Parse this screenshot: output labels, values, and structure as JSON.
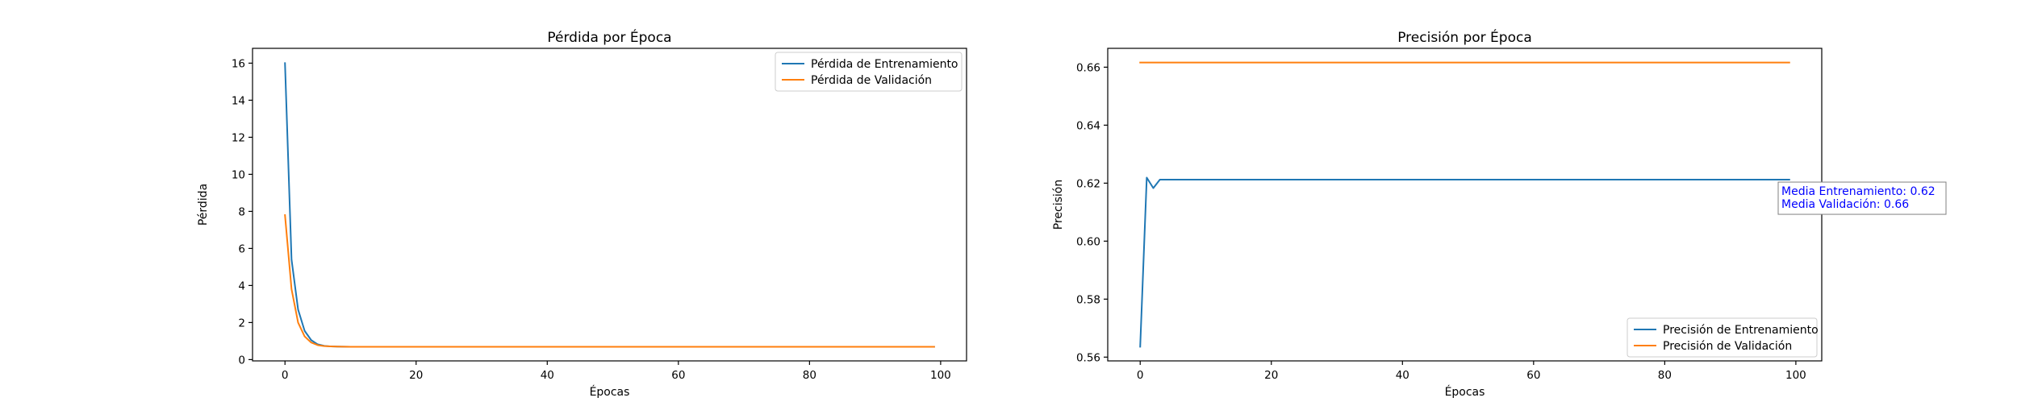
{
  "chart_data": [
    {
      "type": "line",
      "title": "Pérdida por Época",
      "xlabel": "Épocas",
      "ylabel": "Pérdida",
      "xlim": [
        -4.95,
        103.95
      ],
      "ylim": [
        -0.07,
        16.8
      ],
      "xticks": [
        0,
        20,
        40,
        60,
        80,
        100
      ],
      "xtick_labels": [
        "0",
        "20",
        "40",
        "60",
        "80",
        "100"
      ],
      "yticks": [
        0,
        2,
        4,
        6,
        8,
        10,
        12,
        14,
        16
      ],
      "ytick_labels": [
        "0",
        "2",
        "4",
        "6",
        "8",
        "10",
        "12",
        "14",
        "16"
      ],
      "grid": false,
      "legend": "upper right",
      "series": [
        {
          "name": "Pérdida de Entrenamiento",
          "color": "#1f77b4",
          "x": [
            0,
            1,
            2,
            3,
            4,
            5,
            6,
            7,
            8,
            10,
            15,
            20,
            30,
            40,
            50,
            60,
            70,
            80,
            90,
            99
          ],
          "y": [
            16.0,
            5.4,
            2.7,
            1.55,
            1.05,
            0.82,
            0.74,
            0.71,
            0.7,
            0.69,
            0.69,
            0.69,
            0.69,
            0.69,
            0.69,
            0.69,
            0.69,
            0.69,
            0.69,
            0.69
          ]
        },
        {
          "name": "Pérdida de Validación",
          "color": "#ff7f0e",
          "x": [
            0,
            1,
            2,
            3,
            4,
            5,
            6,
            7,
            8,
            10,
            15,
            20,
            30,
            40,
            50,
            60,
            70,
            80,
            90,
            99
          ],
          "y": [
            7.8,
            3.8,
            2.0,
            1.25,
            0.92,
            0.78,
            0.73,
            0.71,
            0.7,
            0.69,
            0.69,
            0.69,
            0.69,
            0.69,
            0.69,
            0.69,
            0.69,
            0.69,
            0.69,
            0.69
          ]
        }
      ]
    },
    {
      "type": "line",
      "title": "Precisión por Época",
      "xlabel": "Épocas",
      "ylabel": "Precisión",
      "xlim": [
        -4.95,
        103.95
      ],
      "ylim": [
        0.5587,
        0.6665
      ],
      "xticks": [
        0,
        20,
        40,
        60,
        80,
        100
      ],
      "xtick_labels": [
        "0",
        "20",
        "40",
        "60",
        "80",
        "100"
      ],
      "yticks": [
        0.56,
        0.58,
        0.6,
        0.62,
        0.64,
        0.66
      ],
      "ytick_labels": [
        "0.56",
        "0.58",
        "0.60",
        "0.62",
        "0.64",
        "0.66"
      ],
      "grid": false,
      "legend": "lower right",
      "series": [
        {
          "name": "Precisión de Entrenamiento",
          "color": "#1f77b4",
          "x": [
            0,
            1,
            2,
            3,
            99
          ],
          "y": [
            0.5636,
            0.6219,
            0.6183,
            0.6212,
            0.6212
          ]
        },
        {
          "name": "Precisión de Validación",
          "color": "#ff7f0e",
          "x": [
            0,
            99
          ],
          "y": [
            0.6616,
            0.6616
          ]
        }
      ],
      "annotation": {
        "lines": [
          "Media Entrenamiento: 0.62",
          "Media Validación: 0.66"
        ],
        "color": "#0000ff"
      }
    }
  ]
}
